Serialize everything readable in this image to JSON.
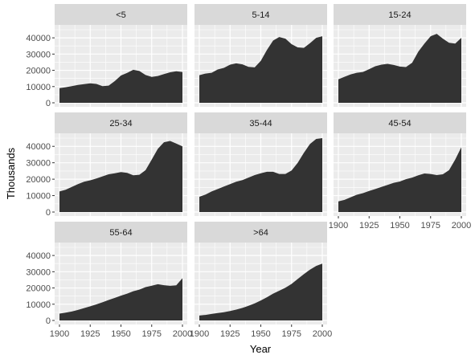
{
  "chart_data": {
    "type": "area",
    "xlabel": "Year",
    "ylabel": "Thousands",
    "xlim": [
      1900,
      2000
    ],
    "ylim": [
      0,
      45000
    ],
    "xticks": [
      1900,
      1925,
      1950,
      1975,
      2000
    ],
    "xtick_labels": [
      "1900",
      "1925",
      "1950",
      "1975",
      "2000"
    ],
    "yticks": [
      0,
      10000,
      20000,
      30000,
      40000
    ],
    "ytick_labels": [
      "0",
      "10000",
      "20000",
      "30000",
      "40000"
    ],
    "layout": {
      "ncol": 3,
      "nrow": 3
    },
    "colors": {
      "fill": "#333333",
      "panel": "#ebebeb",
      "strip": "#d9d9d9",
      "grid": "#ffffff"
    },
    "x": [
      1900,
      1905,
      1910,
      1915,
      1920,
      1925,
      1930,
      1935,
      1940,
      1945,
      1950,
      1955,
      1960,
      1965,
      1970,
      1975,
      1980,
      1985,
      1990,
      1995,
      2000
    ],
    "series": [
      {
        "name": "<5",
        "values": [
          9000,
          9600,
          10300,
          11000,
          11500,
          12000,
          11600,
          10300,
          10600,
          13400,
          16800,
          18400,
          20300,
          19600,
          17100,
          15900,
          16500,
          17700,
          18800,
          19400,
          19000
        ]
      },
      {
        "name": "5-14",
        "values": [
          17000,
          18000,
          18500,
          20500,
          21500,
          23500,
          24300,
          23700,
          22100,
          21800,
          25800,
          32500,
          38300,
          40500,
          39500,
          36100,
          34100,
          33800,
          36700,
          40000,
          41000
        ]
      },
      {
        "name": "15-24",
        "values": [
          14500,
          16000,
          17500,
          18500,
          19000,
          20700,
          22500,
          23500,
          24000,
          23300,
          22300,
          22000,
          24700,
          31500,
          36500,
          41000,
          42500,
          39500,
          37000,
          36500,
          40000
        ]
      },
      {
        "name": "25-34",
        "values": [
          12500,
          13600,
          15300,
          17000,
          18500,
          19300,
          20400,
          21700,
          23000,
          23600,
          24300,
          23800,
          22400,
          22700,
          25500,
          32000,
          38500,
          42500,
          43300,
          41700,
          40000
        ]
      },
      {
        "name": "35-44",
        "values": [
          9300,
          10600,
          12500,
          14000,
          15500,
          17000,
          18500,
          19400,
          21000,
          22500,
          23600,
          24500,
          24500,
          23200,
          23200,
          25300,
          30000,
          36000,
          41500,
          44500,
          45000
        ]
      },
      {
        "name": "45-54",
        "values": [
          6500,
          7400,
          9000,
          10500,
          11500,
          12800,
          14000,
          15300,
          16500,
          17800,
          18600,
          20000,
          21000,
          22400,
          23500,
          23200,
          22500,
          23000,
          25500,
          32000,
          39500
        ]
      },
      {
        "name": "55-64",
        "values": [
          4200,
          4800,
          5500,
          6500,
          7600,
          8700,
          9900,
          11200,
          12600,
          13900,
          15300,
          16500,
          18000,
          19000,
          20500,
          21400,
          22300,
          21700,
          21300,
          21600,
          26000
        ]
      },
      {
        "name": ">64",
        "values": [
          3000,
          3400,
          4000,
          4600,
          5100,
          5800,
          6700,
          7700,
          9000,
          10500,
          12300,
          14300,
          16500,
          18300,
          20200,
          22500,
          25500,
          28500,
          31300,
          33600,
          35000
        ]
      }
    ]
  }
}
